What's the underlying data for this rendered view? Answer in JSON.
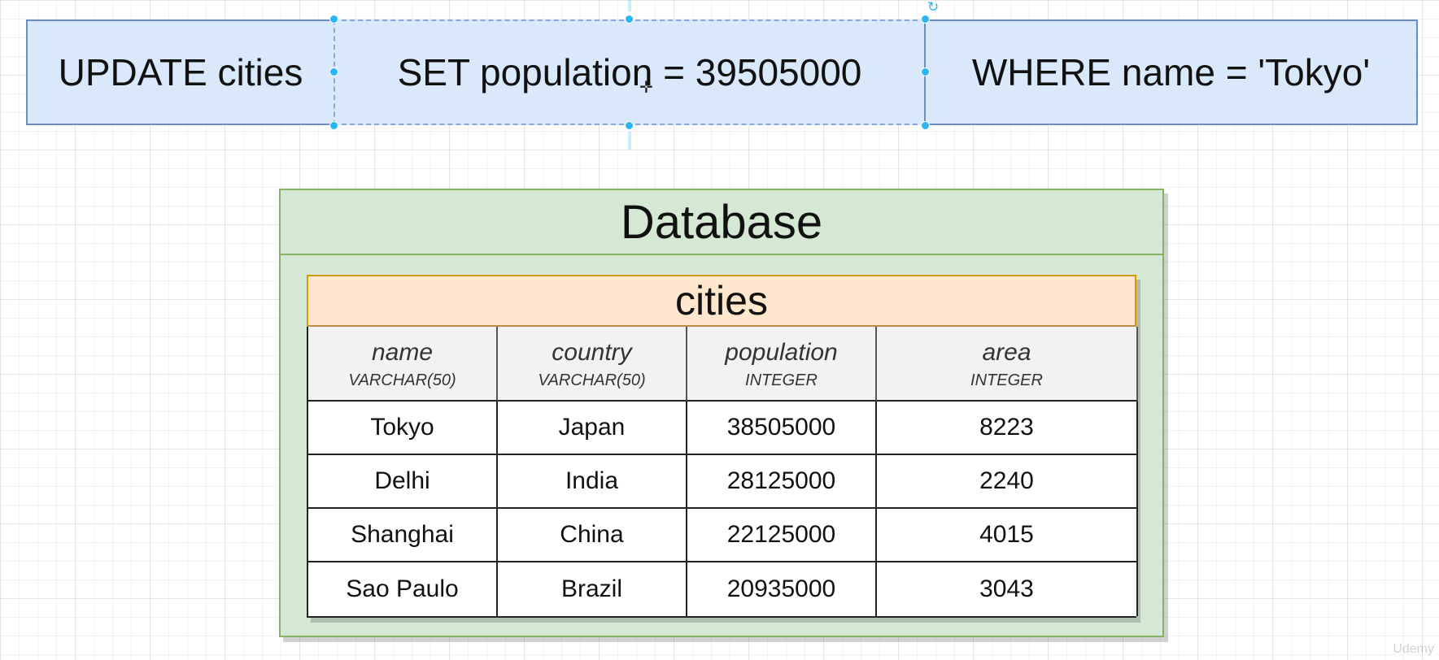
{
  "sql": {
    "update": "UPDATE cities",
    "set": "SET population = 39505000",
    "where": "WHERE name = 'Tokyo'"
  },
  "database": {
    "title": "Database",
    "table": {
      "title": "cities",
      "columns": [
        {
          "name": "name",
          "type": "VARCHAR(50)"
        },
        {
          "name": "country",
          "type": "VARCHAR(50)"
        },
        {
          "name": "population",
          "type": "INTEGER"
        },
        {
          "name": "area",
          "type": "INTEGER"
        }
      ],
      "rows": [
        [
          "Tokyo",
          "Japan",
          "38505000",
          "8223"
        ],
        [
          "Delhi",
          "India",
          "28125000",
          "2240"
        ],
        [
          "Shanghai",
          "China",
          "22125000",
          "4015"
        ],
        [
          "Sao Paulo",
          "Brazil",
          "20935000",
          "3043"
        ]
      ]
    }
  },
  "watermark": "Udemy",
  "colors": {
    "sql_fill": "#dae8fc",
    "sql_border": "#6c8ebf",
    "db_fill": "#d5e8d4",
    "db_border": "#82b366",
    "table_title_fill": "#ffe6cc",
    "table_title_border": "#d79b00",
    "header_fill": "#f2f2f2",
    "selection_handle": "#29b6f2"
  }
}
